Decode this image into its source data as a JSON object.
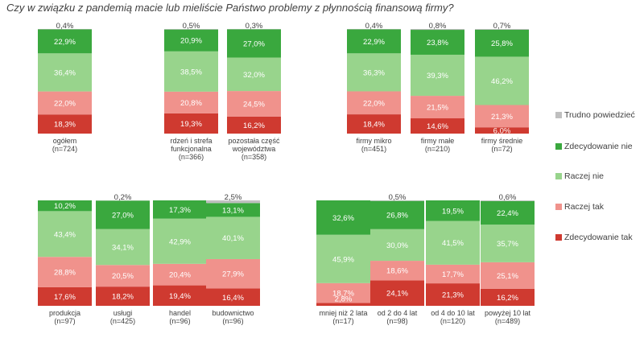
{
  "title": "Czy w związku z pandemią macie lub mieliście Państwo problemy z płynnością finansową firmy?",
  "chart_data": {
    "type": "bar",
    "stacked": true,
    "percent": true,
    "series": [
      {
        "name": "Zdecydowanie tak",
        "color": "#cf3a30"
      },
      {
        "name": "Raczej tak",
        "color": "#f0928c"
      },
      {
        "name": "Raczej nie",
        "color": "#98d48c"
      },
      {
        "name": "Zdecydowanie nie",
        "color": "#3aa83e"
      },
      {
        "name": "Trudno powiedzieć",
        "color": "#bfbfbf"
      }
    ],
    "legend": [
      "Trudno powiedzieć",
      "Zdecydowanie nie",
      "Raczej nie",
      "Raczej tak",
      "Zdecydowanie tak"
    ],
    "legend_position": "right",
    "groups": [
      {
        "bars": [
          {
            "label": [
              "ogółem",
              "(n=724)"
            ],
            "values": [
              18.3,
              22.0,
              36.4,
              22.9,
              0.4
            ],
            "labels": [
              "18,3%",
              "22,0%",
              "36,4%",
              "22,9%",
              "0,4%"
            ]
          }
        ]
      },
      {
        "bars": [
          {
            "label": [
              "rdzeń i strefa",
              "funkcjonalna",
              "(n=366)"
            ],
            "values": [
              19.3,
              20.8,
              38.5,
              20.9,
              0.5
            ],
            "labels": [
              "19,3%",
              "20,8%",
              "38,5%",
              "20,9%",
              "0,5%"
            ]
          },
          {
            "label": [
              "pozostała część",
              "województwa",
              "(n=358)"
            ],
            "values": [
              16.2,
              24.5,
              32.0,
              27.0,
              0.3
            ],
            "labels": [
              "16,2%",
              "24,5%",
              "32,0%",
              "27,0%",
              "0,3%"
            ]
          }
        ]
      },
      {
        "bars": [
          {
            "label": [
              "firmy mikro",
              "(n=451)"
            ],
            "values": [
              18.4,
              22.0,
              36.3,
              22.9,
              0.4
            ],
            "labels": [
              "18,4%",
              "22,0%",
              "36,3%",
              "22,9%",
              "0,4%"
            ]
          },
          {
            "label": [
              "firmy małe",
              "(n=210)"
            ],
            "values": [
              14.6,
              21.5,
              39.3,
              23.8,
              0.8
            ],
            "labels": [
              "14,6%",
              "21,5%",
              "39,3%",
              "23,8%",
              "0,8%"
            ]
          },
          {
            "label": [
              "firmy średnie",
              "(n=72)"
            ],
            "values": [
              6.0,
              21.3,
              46.2,
              25.8,
              0.7
            ],
            "labels": [
              "6,0%",
              "21,3%",
              "46,2%",
              "25,8%",
              "0,7%"
            ]
          }
        ]
      },
      {
        "bars": [
          {
            "label": [
              "produkcja",
              "(n=97)"
            ],
            "values": [
              17.6,
              28.8,
              43.4,
              10.2,
              0
            ],
            "labels": [
              "17,6%",
              "28,8%",
              "43,4%",
              "10,2%",
              ""
            ]
          },
          {
            "label": [
              "usługi",
              "(n=425)"
            ],
            "values": [
              18.2,
              20.5,
              34.1,
              27.0,
              0.2
            ],
            "labels": [
              "18,2%",
              "20,5%",
              "34,1%",
              "27,0%",
              "0,2%"
            ]
          },
          {
            "label": [
              "handel",
              "(n=96)"
            ],
            "values": [
              19.4,
              20.4,
              42.9,
              17.3,
              0
            ],
            "labels": [
              "19,4%",
              "20,4%",
              "42,9%",
              "17,3%",
              ""
            ]
          },
          {
            "label": [
              "budownictwo",
              "(n=96)"
            ],
            "values": [
              16.4,
              27.9,
              40.1,
              13.1,
              2.5
            ],
            "labels": [
              "16,4%",
              "27,9%",
              "40,1%",
              "13,1%",
              "2,5%"
            ]
          }
        ]
      },
      {
        "bars": [
          {
            "label": [
              "mniej niż 2 lata",
              "(n=17)"
            ],
            "values": [
              2.8,
              18.7,
              45.9,
              32.6,
              0
            ],
            "labels": [
              "2,8%",
              "18,7%",
              "45,9%",
              "32,6%",
              ""
            ]
          },
          {
            "label": [
              "od 2 do 4 lat",
              "(n=98)"
            ],
            "values": [
              24.1,
              18.6,
              30.0,
              26.8,
              0.5
            ],
            "labels": [
              "24,1%",
              "18,6%",
              "30,0%",
              "26,8%",
              "0,5%"
            ]
          },
          {
            "label": [
              "od 4 do 10 lat",
              "(n=120)"
            ],
            "values": [
              21.3,
              17.7,
              41.5,
              19.5,
              0
            ],
            "labels": [
              "21,3%",
              "17,7%",
              "41,5%",
              "19,5%",
              ""
            ]
          },
          {
            "label": [
              "powyżej 10 lat",
              "(n=489)"
            ],
            "values": [
              16.2,
              25.1,
              35.7,
              22.4,
              0.6
            ],
            "labels": [
              "16,2%",
              "25,1%",
              "35,7%",
              "22,4%",
              "0,6%"
            ]
          }
        ]
      }
    ]
  }
}
